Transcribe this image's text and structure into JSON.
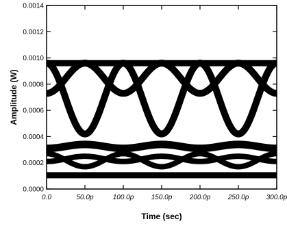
{
  "chart_data": {
    "type": "line",
    "title": "",
    "xlabel": "Time (sec)",
    "ylabel": "Amplitude (W)",
    "xlim": [
      0,
      300
    ],
    "ylim": [
      0,
      0.0014
    ],
    "x_ticks": [
      0,
      50,
      100,
      150,
      200,
      250,
      300
    ],
    "x_tick_labels": [
      "0.0",
      "50.0p",
      "100.0p",
      "150.0p",
      "200.0p",
      "250.0p",
      "300.0p"
    ],
    "y_ticks": [
      0,
      0.0002,
      0.0004,
      0.0006,
      0.0008,
      0.001,
      0.0012,
      0.0014
    ],
    "y_tick_labels": [
      "0.0000",
      "0.0002",
      "0.0004",
      "0.0006",
      "0.0008",
      "0.0010",
      "0.0012",
      "0.0014"
    ],
    "grid": false,
    "series": [
      {
        "x": [
          0,
          300
        ],
        "y": [
          0.00096,
          0.00096
        ]
      },
      {
        "x": [
          0,
          300
        ],
        "y": [
          0.000105,
          0.000105
        ]
      },
      {
        "x": [
          0,
          50,
          100,
          150,
          200,
          250,
          300
        ],
        "y": [
          0.00096,
          0.00042,
          0.00096,
          0.00042,
          0.00096,
          0.00042,
          0.00096
        ]
      },
      {
        "x": [
          0,
          50,
          100,
          150,
          200,
          250,
          300
        ],
        "y": [
          0.00073,
          0.00096,
          0.00073,
          0.00096,
          0.00073,
          0.00096,
          0.00073
        ]
      },
      {
        "x": [
          0,
          50,
          100,
          150,
          200,
          250,
          300
        ],
        "y": [
          0.00031,
          0.00034,
          0.00031,
          0.00034,
          0.00031,
          0.00034,
          0.00031
        ]
      },
      {
        "x": [
          0,
          50,
          100,
          150,
          200,
          250,
          300
        ],
        "y": [
          0.00027,
          0.00017,
          0.00027,
          0.00017,
          0.00027,
          0.00017,
          0.00027
        ]
      },
      {
        "x": [
          0,
          50,
          100,
          150,
          200,
          250,
          300
        ],
        "y": [
          0.00021,
          0.00025,
          0.00021,
          0.00025,
          0.00021,
          0.00025,
          0.00021
        ]
      }
    ]
  }
}
